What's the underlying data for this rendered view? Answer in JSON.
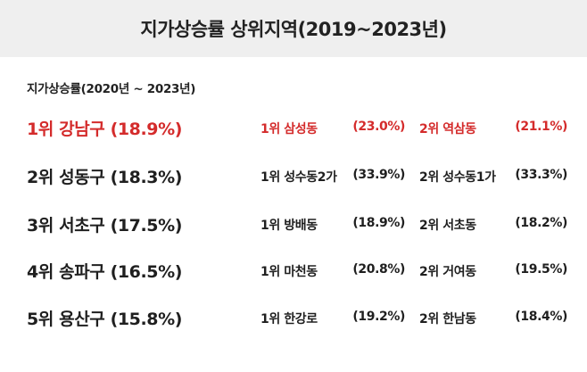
{
  "header": {
    "title": "지가상승률 상위지역(2019~2023년)"
  },
  "subtitle": "지가상승률(2020년 ~ 2023년)",
  "colors": {
    "highlight": "#d42b2b",
    "header_bg": "#efefef",
    "text": "#1f1f1f"
  },
  "rows": [
    {
      "district": "1위 강남구 (18.9%)",
      "first": {
        "name": "1위 삼성동",
        "pct": "(23.0%)"
      },
      "second": {
        "name": "2위 역삼동",
        "pct": "(21.1%)"
      },
      "highlighted": true
    },
    {
      "district": "2위 성동구 (18.3%)",
      "first": {
        "name": "1위 성수동2가",
        "pct": "(33.9%)"
      },
      "second": {
        "name": "2위 성수동1가",
        "pct": "(33.3%)"
      },
      "highlighted": false
    },
    {
      "district": "3위 서초구 (17.5%)",
      "first": {
        "name": "1위 방배동",
        "pct": "(18.9%)"
      },
      "second": {
        "name": "2위 서초동",
        "pct": "(18.2%)"
      },
      "highlighted": false
    },
    {
      "district": "4위 송파구 (16.5%)",
      "first": {
        "name": "1위 마천동",
        "pct": "(20.8%)"
      },
      "second": {
        "name": "2위 거여동",
        "pct": "(19.5%)"
      },
      "highlighted": false
    },
    {
      "district": "5위 용산구 (15.8%)",
      "first": {
        "name": "1위 한강로",
        "pct": "(19.2%)"
      },
      "second": {
        "name": "2위 한남동",
        "pct": "(18.4%)"
      },
      "highlighted": false
    }
  ]
}
